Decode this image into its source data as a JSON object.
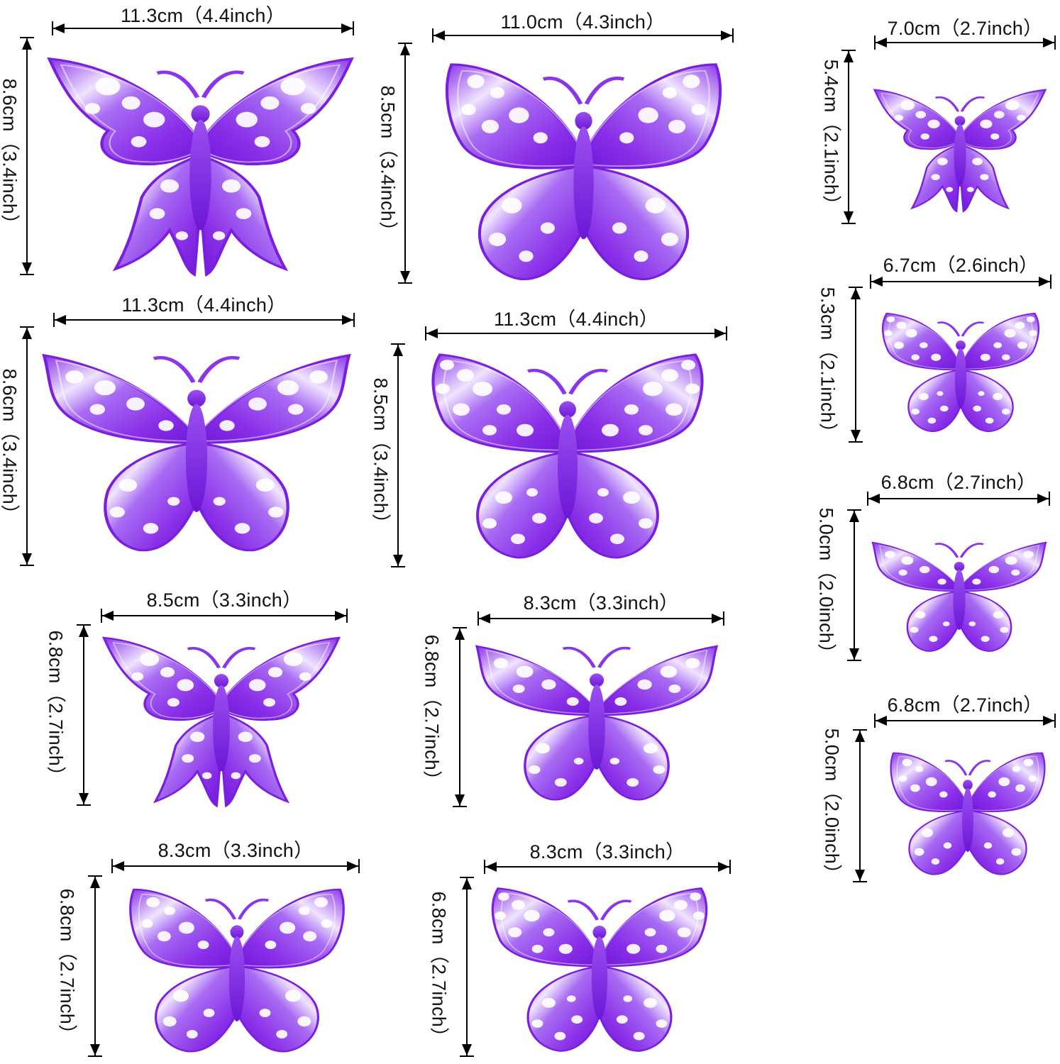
{
  "colors": {
    "purple_dark": "#7a1fe0",
    "purple_mid": "#9b4ff0",
    "purple_light": "#d9bff9",
    "highlight": "#ffffff",
    "dimension_line": "#000000"
  },
  "items": [
    {
      "id": "b1",
      "width_label": "11.3cm（4.4inch）",
      "height_label": "8.6cm（3.4inch）",
      "style": "swallowtail"
    },
    {
      "id": "b2",
      "width_label": "11.0cm（4.3inch）",
      "height_label": "8.5cm（3.4inch）",
      "style": "round"
    },
    {
      "id": "b3",
      "width_label": "7.0cm（2.7inch）",
      "height_label": "5.4cm（2.1inch）",
      "style": "swallowtail"
    },
    {
      "id": "b4",
      "width_label": "11.3cm（4.4inch）",
      "height_label": "8.6cm（3.4inch）",
      "style": "wide"
    },
    {
      "id": "b5",
      "width_label": "11.3cm（4.4inch）",
      "height_label": "8.5cm（3.4inch）",
      "style": "lace"
    },
    {
      "id": "b6",
      "width_label": "6.7cm（2.6inch）",
      "height_label": "5.3cm（2.1inch）",
      "style": "lace"
    },
    {
      "id": "b7",
      "width_label": "6.8cm（2.7inch）",
      "height_label": "5.0cm（2.0inch）",
      "style": "wide"
    },
    {
      "id": "b8",
      "width_label": "8.5cm（3.3inch）",
      "height_label": "6.8cm（2.7inch）",
      "style": "swallowtail"
    },
    {
      "id": "b9",
      "width_label": "8.3cm（3.3inch）",
      "height_label": "6.8cm（2.7inch）",
      "style": "wide"
    },
    {
      "id": "b10",
      "width_label": "6.8cm（2.7inch）",
      "height_label": "5.0cm（2.0inch）",
      "style": "round"
    },
    {
      "id": "b11",
      "width_label": "8.3cm（3.3inch）",
      "height_label": "6.8cm（2.7inch）",
      "style": "round"
    },
    {
      "id": "b12",
      "width_label": "8.3cm（3.3inch）",
      "height_label": "6.8cm（2.7inch）",
      "style": "lace"
    }
  ]
}
